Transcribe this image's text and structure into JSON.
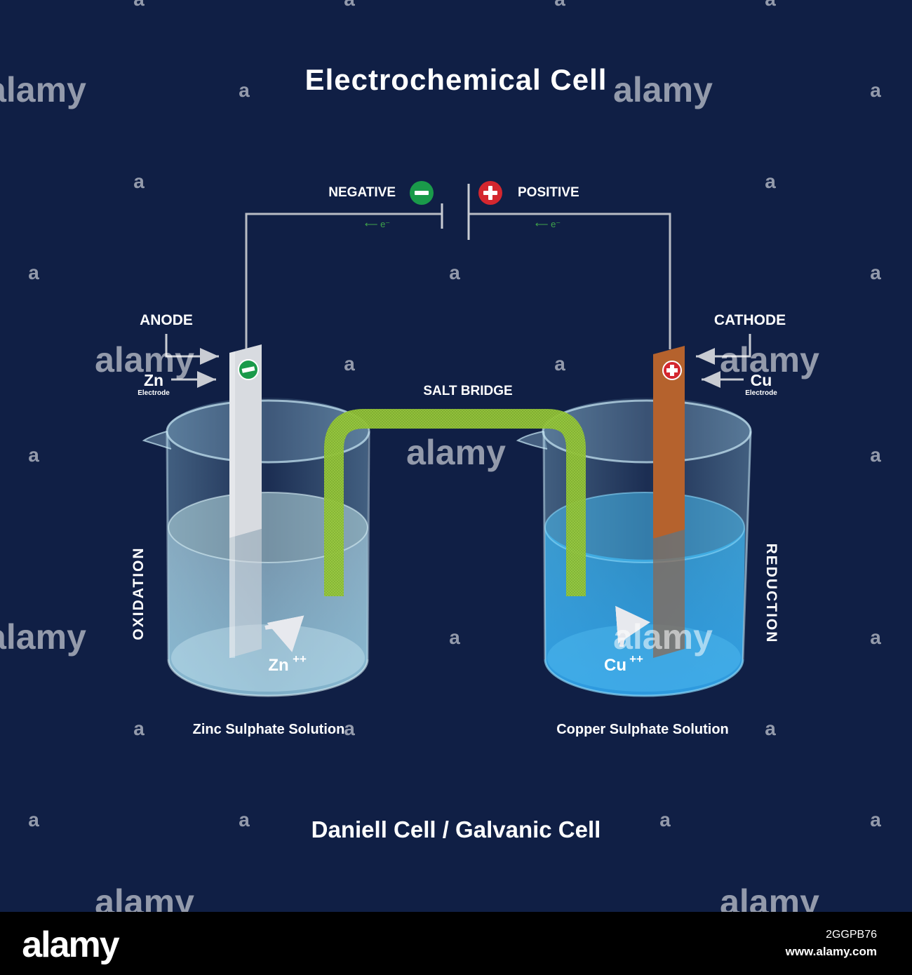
{
  "title": "Electrochemical Cell",
  "subtitle": "Daniell Cell / Galvanic Cell",
  "battery": {
    "negative_label": "NEGATIVE",
    "positive_label": "POSITIVE",
    "negative_symbol": "−",
    "positive_symbol": "+",
    "electron_left": "⟵ e⁻",
    "electron_right": "⟵ e⁻"
  },
  "anode": {
    "label": "ANODE",
    "electrode_symbol": "Zn",
    "electrode_caption": "Electrode",
    "sign": "−",
    "ion": "Zn",
    "ion_charge": "++",
    "process": "OXIDATION",
    "solution": "Zinc Sulphate Solution"
  },
  "cathode": {
    "label": "CATHODE",
    "electrode_symbol": "Cu",
    "electrode_caption": "Electrode",
    "sign": "+",
    "ion": "Cu",
    "ion_charge": "++",
    "process": "REDUCTION",
    "solution": "Copper Sulphate Solution"
  },
  "salt_bridge_label": "SALT BRIDGE",
  "watermark": {
    "text": "alamy",
    "small_mark": "a",
    "footer_logo": "alamy",
    "image_id": "2GGPB76",
    "site": "www.alamy.com"
  },
  "colors": {
    "background": "#101f45",
    "footer": "#000000",
    "negative": "#1a9a4a",
    "positive": "#d4272f",
    "salt_bridge": "#9ccc3c",
    "copper": "#b5622d",
    "zinc": "#d4d7dc",
    "zinc_solution": "#a9dcef",
    "copper_solution": "#2fa6e6"
  }
}
